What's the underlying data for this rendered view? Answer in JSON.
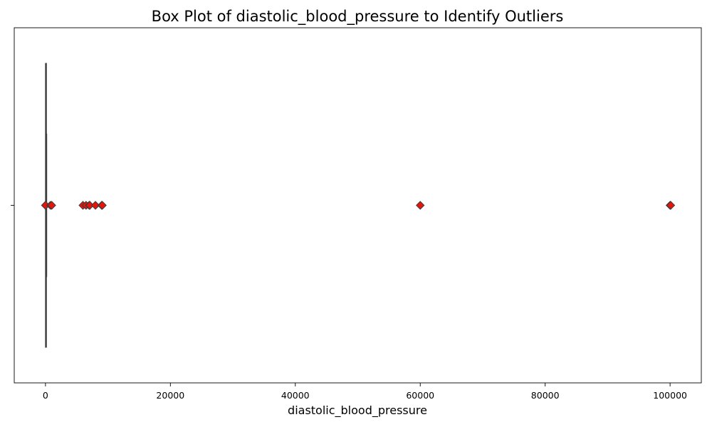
{
  "chart_data": {
    "type": "box",
    "title": "Box Plot of diastolic_blood_pressure to Identify Outliers",
    "xlabel": "diastolic_blood_pressure",
    "ylabel": "",
    "xlim": [
      -5000,
      105000
    ],
    "xticks": [
      0,
      20000,
      40000,
      60000,
      80000,
      100000
    ],
    "xtick_labels": [
      "0",
      "20000",
      "40000",
      "60000",
      "80000",
      "100000"
    ],
    "grid": false,
    "box": {
      "whisker_low": 20,
      "q1": 70,
      "median": 80,
      "q3": 90,
      "whisker_high": 140
    },
    "outliers": [
      0,
      10,
      800,
      1000,
      6000,
      6500,
      7000,
      7100,
      8000,
      9000,
      9100,
      60000,
      100000,
      100100
    ],
    "colors": {
      "box_line": "#3d3d3d",
      "outlier_fill": "#e8140c",
      "outlier_edge": "#3d3d3d",
      "axes": "#000000"
    }
  }
}
